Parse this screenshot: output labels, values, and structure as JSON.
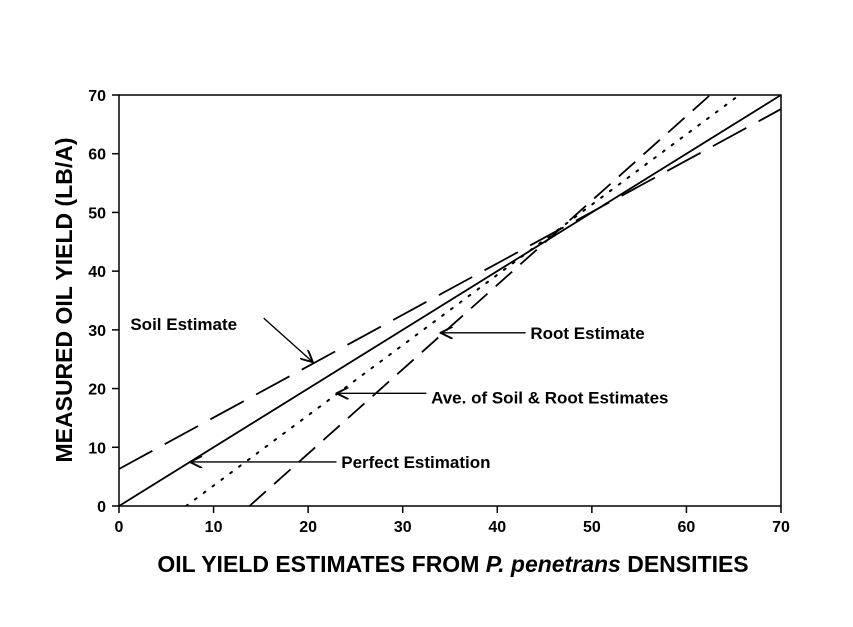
{
  "chart_data": {
    "type": "line",
    "title": "",
    "xlabel_parts": [
      "OIL YIELD ESTIMATES FROM ",
      "P. penetrans",
      " DENSITIES"
    ],
    "ylabel": "MEASURED OIL YIELD (LB/A)",
    "xlim": [
      0,
      70
    ],
    "ylim": [
      0,
      70
    ],
    "xticks": [
      0,
      10,
      20,
      30,
      40,
      50,
      60,
      70
    ],
    "yticks": [
      0,
      10,
      20,
      30,
      40,
      50,
      60,
      70
    ],
    "grid": false,
    "legend": "none",
    "series": [
      {
        "name": "Perfect Estimation",
        "style": "solid",
        "x": [
          0,
          70
        ],
        "y": [
          0,
          70
        ]
      },
      {
        "name": "Soil Estimate",
        "style": "long-dash",
        "x": [
          0,
          70
        ],
        "y": [
          6.3,
          67.6
        ]
      },
      {
        "name": "Root Estimate",
        "style": "dash",
        "x": [
          13.8,
          62.5
        ],
        "y": [
          0,
          70
        ]
      },
      {
        "name": "Ave. of Soil & Root Estimates",
        "style": "dotted",
        "x": [
          7.1,
          65.6
        ],
        "y": [
          0,
          70
        ]
      }
    ],
    "annotations": [
      {
        "text": "Soil Estimate",
        "text_at": [
          1.2,
          31
        ],
        "text_anchor": "start",
        "arrow_from": [
          15.3,
          32
        ],
        "arrow_to": [
          20.5,
          24.5
        ]
      },
      {
        "text": "Root Estimate",
        "text_at": [
          43.5,
          29.5
        ],
        "text_anchor": "start",
        "arrow_from": [
          43,
          29.5
        ],
        "arrow_to": [
          34,
          29.5
        ]
      },
      {
        "text": "Ave. of Soil & Root Estimates",
        "text_at": [
          33,
          18.5
        ],
        "text_anchor": "start",
        "arrow_from": [
          32.5,
          19.2
        ],
        "arrow_to": [
          23,
          19.2
        ]
      },
      {
        "text": "Perfect Estimation",
        "text_at": [
          23.5,
          7.5
        ],
        "text_anchor": "start",
        "arrow_from": [
          23,
          7.5
        ],
        "arrow_to": [
          7.5,
          7.5
        ]
      }
    ]
  }
}
